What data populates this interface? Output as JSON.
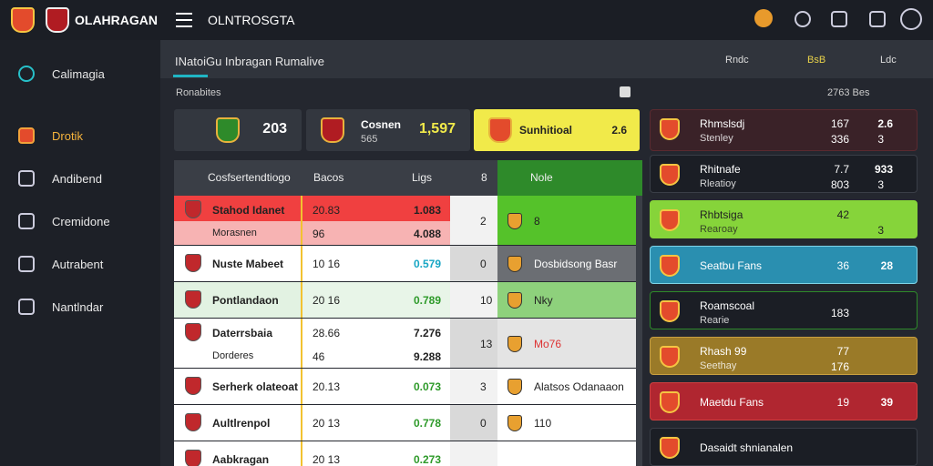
{
  "topbar": {
    "brand": "OLAHRAGAN",
    "title": "OLNTROSGTA"
  },
  "sidebar": [
    "Calimagia",
    "Drotik",
    "Andibend",
    "Cremidone",
    "Autrabent",
    "Nantlndar"
  ],
  "header": {
    "title": "INatoiGu Inbragan Rumalive",
    "links": [
      "Rndc",
      "BsB",
      "Ldc"
    ]
  },
  "section": {
    "label": "Ronabites",
    "right": "2763 Bes"
  },
  "cards": [
    {
      "value": "203"
    },
    {
      "title": "Cosnen",
      "sub": "565",
      "value": "1,597"
    },
    {
      "title": "Sunhitioal",
      "value": "2.6"
    }
  ],
  "table": {
    "headers": [
      "Cosfsertendtiogo",
      "Bacos",
      "Ligs",
      "8",
      "Nole"
    ],
    "rows": [
      {
        "name": "Stahod Idanet",
        "sub": "Morasnen",
        "score": "20.83",
        "score2": "96",
        "value": "1.083",
        "value2": "4.088",
        "rank": "2",
        "note": "8"
      },
      {
        "name": "Nuste Mabeet",
        "score": "10 16",
        "value": "0.579",
        "rank": "0",
        "note": "Dosbidsong Basr"
      },
      {
        "name": "Pontlandaon",
        "score": "20 16",
        "value": "0.789",
        "rank": "10",
        "note": "Nky"
      },
      {
        "name": "Daterrsbaia",
        "sub": "Dorderes",
        "score": "28.66",
        "score2": "46",
        "value": "7.276",
        "value2": "9.288",
        "rank": "13",
        "note": "Mo76"
      },
      {
        "name": "Serherk olateoat",
        "score": "20.13",
        "value": "0.073",
        "rank": "3",
        "note": "Alatsos Odanaaon"
      },
      {
        "name": "Aultlrenpol",
        "score": "20 13",
        "value": "0.778",
        "rank": "0",
        "note": "110"
      },
      {
        "name": "Aabkragan",
        "score": "20 13",
        "value": "0.273"
      }
    ]
  },
  "panel": [
    {
      "name": "Rhmslsdj",
      "sub": "Stenley",
      "a": "167",
      "a2": "336",
      "b": "2.6",
      "b2": "3"
    },
    {
      "name": "Rhitnafe",
      "sub": "Rleatioy",
      "a": "7.7",
      "a2": "803",
      "b": "933",
      "b2": "3"
    },
    {
      "name": "Rhbtsiga",
      "sub": "Rearoay",
      "a": "42",
      "b2": "3"
    },
    {
      "name": "Seatbu Fans",
      "a": "36",
      "b": "28"
    },
    {
      "name": "Roamscoal",
      "sub": "Rearie",
      "a2": "183"
    },
    {
      "name": "Rhash 99",
      "sub": "Seethay",
      "a": "77",
      "a2": "176"
    },
    {
      "name": "Maetdu Fans",
      "a": "19",
      "b": "39"
    },
    {
      "name": "Dasaidt shnianalen"
    }
  ]
}
